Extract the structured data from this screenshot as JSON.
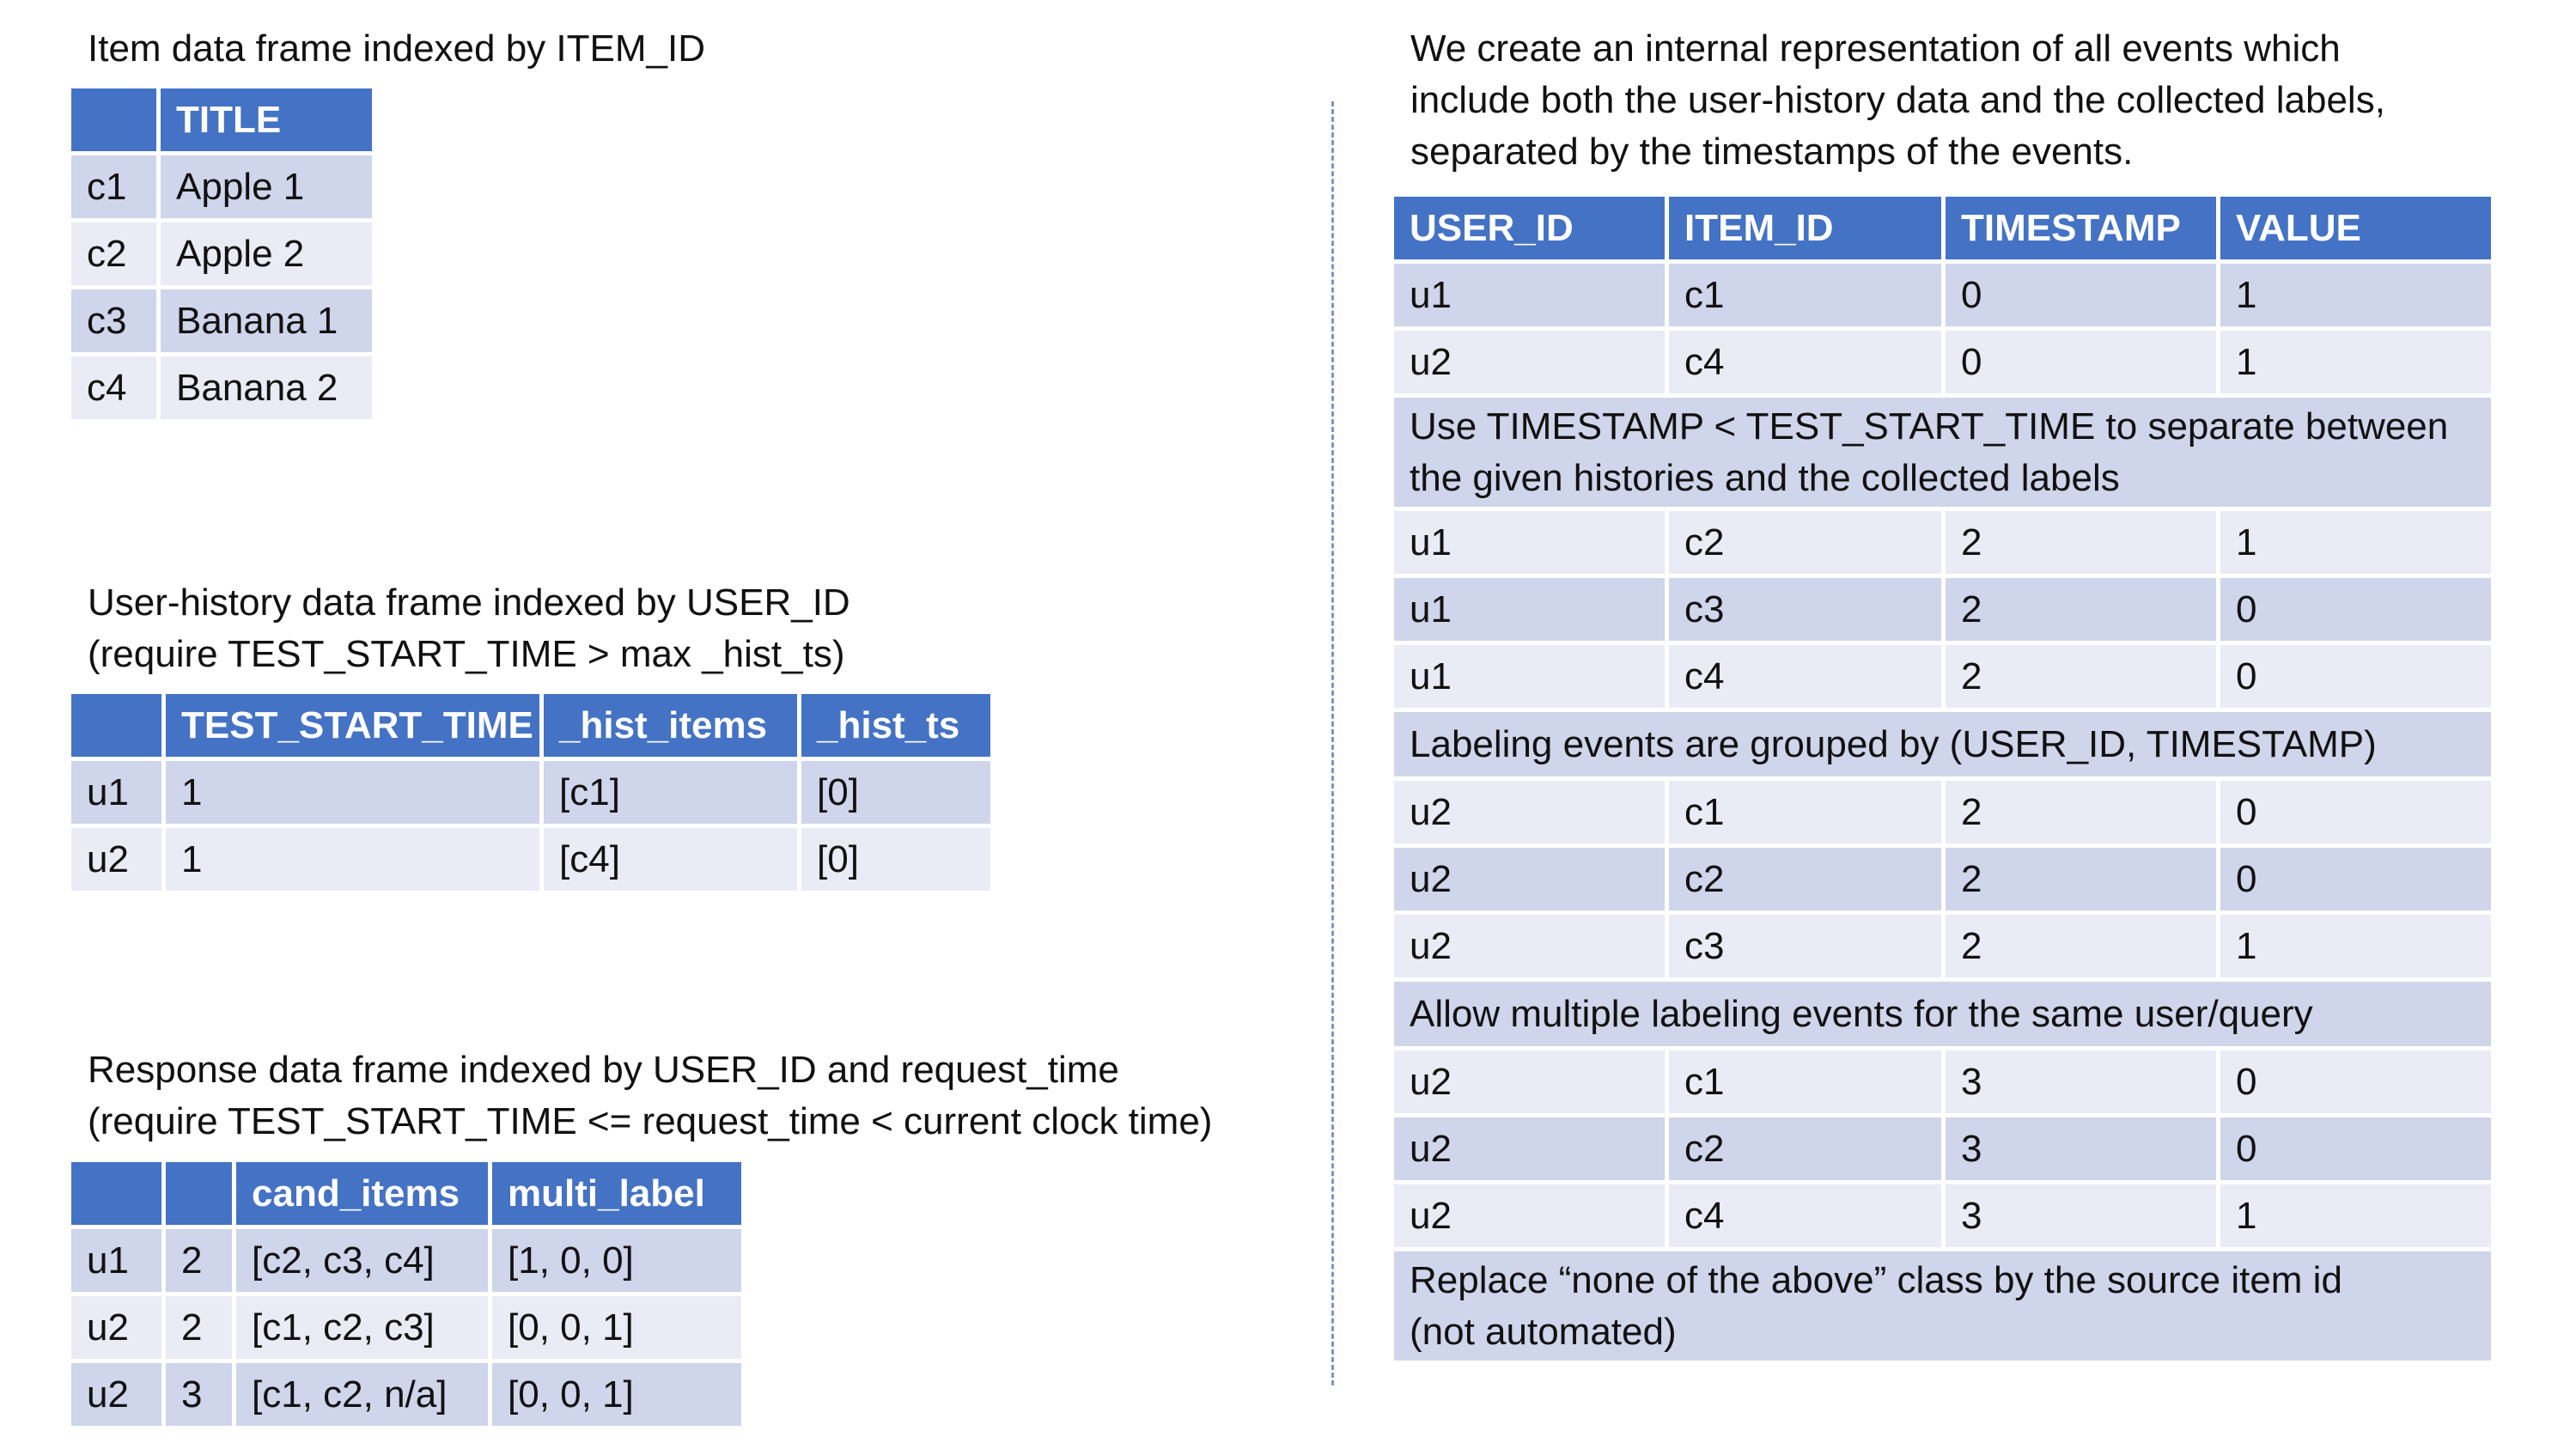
{
  "item_frame": {
    "caption": "Item data frame indexed by ITEM_ID",
    "headers": [
      "",
      "TITLE"
    ],
    "rows": [
      [
        "c1",
        "Apple 1"
      ],
      [
        "c2",
        "Apple 2"
      ],
      [
        "c3",
        "Banana 1"
      ],
      [
        "c4",
        "Banana 2"
      ]
    ]
  },
  "user_history_frame": {
    "caption": [
      "User-history data frame indexed by USER_ID",
      "(require TEST_START_TIME > max _hist_ts)"
    ],
    "headers": [
      "",
      "TEST_START_TIME",
      "_hist_items",
      "_hist_ts"
    ],
    "rows": [
      [
        "u1",
        "1",
        "[c1]",
        "[0]"
      ],
      [
        "u2",
        "1",
        "[c4]",
        "[0]"
      ]
    ]
  },
  "response_frame": {
    "caption": [
      "Response data frame indexed by USER_ID and request_time",
      "(require TEST_START_TIME <= request_time < current clock time)"
    ],
    "headers": [
      "",
      "",
      "cand_items",
      "multi_label"
    ],
    "rows": [
      [
        "u1",
        "2",
        "[c2, c3, c4]",
        "[1, 0, 0]"
      ],
      [
        "u2",
        "2",
        "[c1, c2, c3]",
        "[0, 0, 1]"
      ],
      [
        "u2",
        "3",
        "[c1, c2, n/a]",
        "[0, 0, 1]"
      ]
    ]
  },
  "events_frame": {
    "caption": [
      "We create an internal representation of all events which",
      "include both the user-history data and the collected labels,",
      "separated by the timestamps of the events."
    ],
    "headers": [
      "USER_ID",
      "ITEM_ID",
      "TIMESTAMP",
      "VALUE"
    ],
    "rows": [
      [
        "u1",
        "c1",
        "0",
        "1"
      ],
      [
        "u2",
        "c4",
        "0",
        "1"
      ]
    ],
    "note1": [
      "Use TIMESTAMP < TEST_START_TIME to separate between",
      "the given histories and the collected labels"
    ],
    "rows2": [
      [
        "u1",
        "c2",
        "2",
        "1"
      ],
      [
        "u1",
        "c3",
        "2",
        "0"
      ],
      [
        "u1",
        "c4",
        "2",
        "0"
      ]
    ],
    "note2": "Labeling events are grouped by (USER_ID, TIMESTAMP)",
    "rows3": [
      [
        "u2",
        "c1",
        "2",
        "0"
      ],
      [
        "u2",
        "c2",
        "2",
        "0"
      ],
      [
        "u2",
        "c3",
        "2",
        "1"
      ]
    ],
    "note3": "Allow multiple labeling events for the same user/query",
    "rows4": [
      [
        "u2",
        "c1",
        "3",
        "0"
      ],
      [
        "u2",
        "c2",
        "3",
        "0"
      ],
      [
        "u2",
        "c4",
        "3",
        "1"
      ]
    ],
    "note4": [
      "Replace “none of the above” class by the source item id",
      "(not automated)"
    ]
  },
  "colors": {
    "header": "#4472c4",
    "row_dark": "#cfd5ea",
    "row_light": "#e9ebf5",
    "divider": "#7c95c7"
  }
}
